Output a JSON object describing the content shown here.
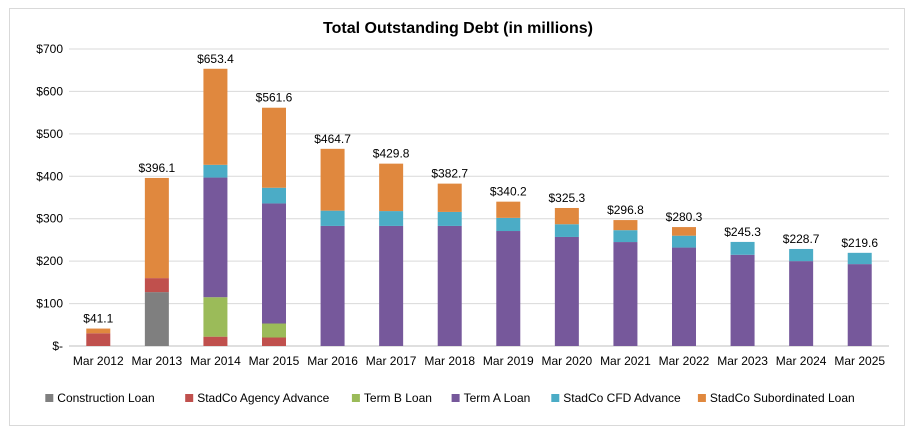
{
  "chart_data": {
    "type": "bar",
    "stacked": true,
    "title": "Total Outstanding Debt (in millions)",
    "xlabel": "",
    "ylabel": "",
    "ylim": [
      0,
      700
    ],
    "yticks": [
      0,
      100,
      200,
      300,
      400,
      500,
      600,
      700
    ],
    "ytick_labels": [
      "$-",
      "$100",
      "$200",
      "$300",
      "$400",
      "$500",
      "$600",
      "$700"
    ],
    "grid": true,
    "legend": "bottom",
    "categories": [
      "Mar 2012",
      "Mar 2013",
      "Mar 2014",
      "Mar 2015",
      "Mar 2016",
      "Mar 2017",
      "Mar 2018",
      "Mar 2019",
      "Mar 2020",
      "Mar 2021",
      "Mar 2022",
      "Mar 2023",
      "Mar 2024",
      "Mar 2025"
    ],
    "totals": [
      41.1,
      396.1,
      653.4,
      561.6,
      464.7,
      429.8,
      382.7,
      340.2,
      325.3,
      296.8,
      280.3,
      245.3,
      228.7,
      219.6
    ],
    "total_labels": [
      "$41.1",
      "$396.1",
      "$653.4",
      "$561.6",
      "$464.7",
      "$429.8",
      "$382.7",
      "$340.2",
      "$325.3",
      "$296.8",
      "$280.3",
      "$245.3",
      "$228.7",
      "$219.6"
    ],
    "series": [
      {
        "name": "Construction Loan",
        "color": "#7f7f7f",
        "values": [
          0,
          127,
          0,
          0,
          0,
          0,
          0,
          0,
          0,
          0,
          0,
          0,
          0,
          0
        ]
      },
      {
        "name": "StadCo Agency Advance",
        "color": "#c0504d",
        "values": [
          30,
          33,
          22,
          20,
          0,
          0,
          0,
          0,
          0,
          0,
          0,
          0,
          0,
          0
        ]
      },
      {
        "name": "Term B Loan",
        "color": "#9bbb59",
        "values": [
          0,
          0,
          93,
          33,
          0,
          0,
          0,
          0,
          0,
          0,
          0,
          0,
          0,
          0
        ]
      },
      {
        "name": "Term A Loan",
        "color": "#76589b",
        "values": [
          0,
          0,
          282,
          283,
          283,
          283,
          283,
          271,
          257,
          245,
          232,
          215,
          200,
          193
        ]
      },
      {
        "name": "StadCo CFD Advance",
        "color": "#4bacc6",
        "values": [
          0,
          0,
          30,
          37,
          36,
          35,
          33,
          31,
          30,
          28,
          28,
          30.3,
          28.7,
          26.6
        ]
      },
      {
        "name": "StadCo Subordinated Loan",
        "color": "#e0883e",
        "values": [
          11.1,
          236.1,
          226.4,
          188.6,
          145.7,
          111.8,
          66.7,
          38.2,
          38.3,
          23.8,
          20.3,
          0,
          0,
          0
        ]
      }
    ]
  }
}
